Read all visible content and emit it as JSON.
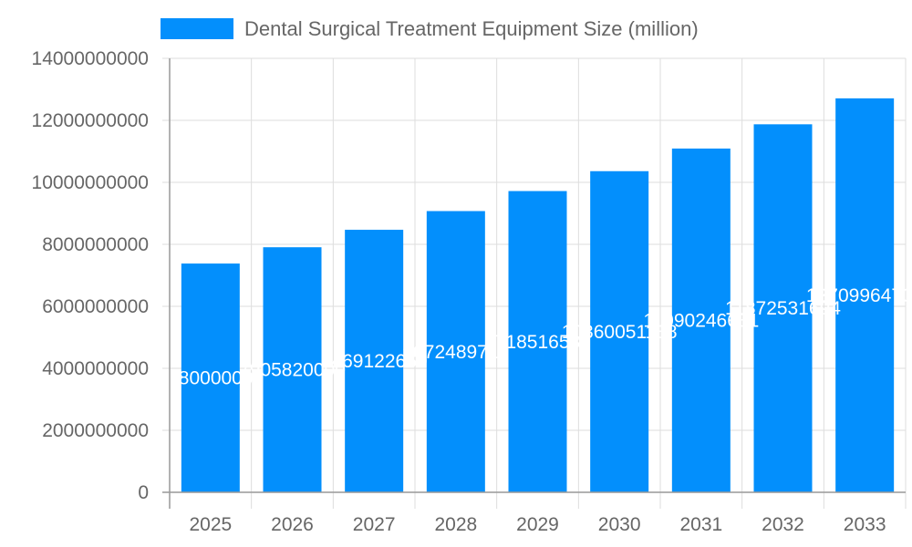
{
  "chart_data": {
    "type": "bar",
    "categories": [
      "2025",
      "2026",
      "2027",
      "2028",
      "2029",
      "2030",
      "2031",
      "2032",
      "2033"
    ],
    "series": [
      {
        "name": "Dental Surgical Treatment Equipment Size (million)",
        "values": [
          7380000000,
          7905820000,
          8469122660,
          9072489715,
          9718516535,
          10360051138,
          11090246631,
          11872531694,
          12709964700
        ],
        "data_labels": [
          "7380000000",
          "7905820000",
          "8469122660",
          "9072489715",
          "9718516535",
          "10360051138",
          "11090246631",
          "11872531694",
          "12709964700"
        ]
      }
    ],
    "yticks": [
      "0",
      "2000000000",
      "4000000000",
      "6000000000",
      "8000000000",
      "10000000000",
      "12000000000",
      "14000000000"
    ],
    "ylim": [
      0,
      14000000000
    ],
    "grid": true,
    "legend": "top",
    "colors": {
      "bar": "#038ffc",
      "grid": "#dddddd",
      "axis": "#999999",
      "text": "#666666"
    }
  }
}
